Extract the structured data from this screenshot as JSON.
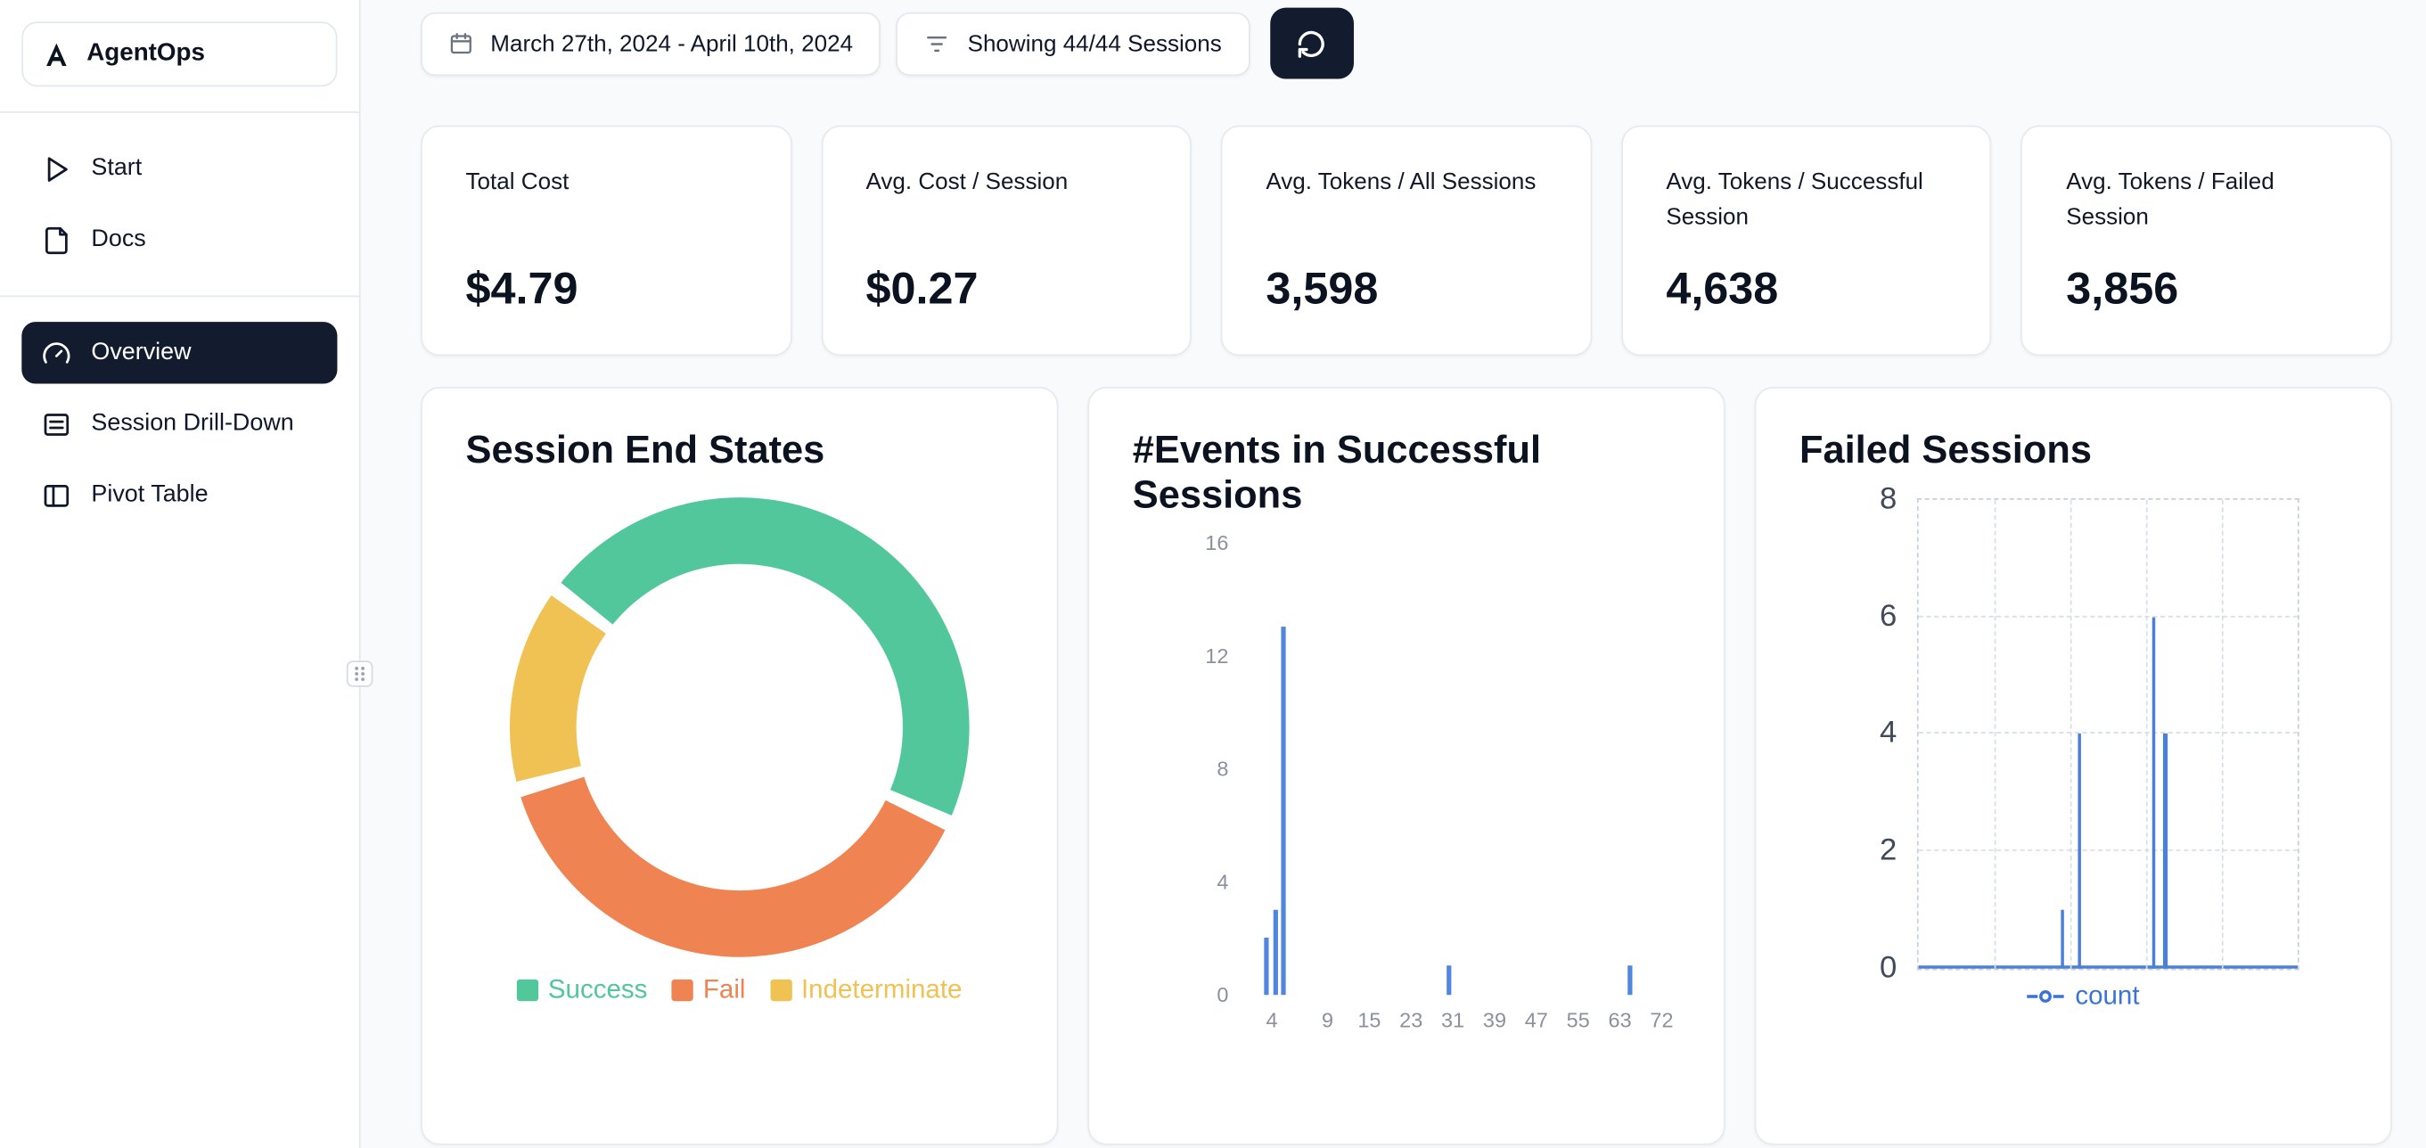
{
  "app": {
    "name": "AgentOps"
  },
  "sidebar": {
    "items": [
      {
        "label": "Start",
        "icon": "play-icon",
        "active": false
      },
      {
        "label": "Docs",
        "icon": "docs-icon",
        "active": false
      },
      {
        "label": "Overview",
        "icon": "gauge-icon",
        "active": true
      },
      {
        "label": "Session Drill-Down",
        "icon": "list-rows-icon",
        "active": false
      },
      {
        "label": "Pivot Table",
        "icon": "panel-columns-icon",
        "active": false
      }
    ]
  },
  "toolbar": {
    "date_range": "March 27th, 2024 - April 10th, 2024",
    "sessions_filter": "Showing 44/44 Sessions"
  },
  "stats": [
    {
      "label": "Total Cost",
      "value": "$4.79"
    },
    {
      "label": "Avg. Cost / Session",
      "value": "$0.27"
    },
    {
      "label": "Avg. Tokens / All Sessions",
      "value": "3,598"
    },
    {
      "label": "Avg. Tokens / Successful Session",
      "value": "4,638"
    },
    {
      "label": "Avg. Tokens / Failed Session",
      "value": "3,856"
    }
  ],
  "colors": {
    "accent_dark": "#131c2f",
    "success": "#52c79b",
    "fail": "#ef8351",
    "indeterminate": "#f0c153",
    "bar_blue": "#4f86e0",
    "line_blue": "#4a80d9"
  },
  "chart_data": [
    {
      "type": "pie",
      "donut": true,
      "title": "Session End States",
      "labels": [
        "Success",
        "Fail",
        "Indeterminate"
      ],
      "values": [
        47,
        39,
        14
      ],
      "unit": "percent",
      "colors": [
        "#52c79b",
        "#ef8351",
        "#f0c153"
      ],
      "legend_position": "bottom"
    },
    {
      "type": "bar",
      "title": "#Events in Successful Sessions",
      "x_ticks": [
        "4",
        "9",
        "15",
        "23",
        "31",
        "39",
        "47",
        "55",
        "63",
        "72"
      ],
      "x_tick_pos": [
        0.05,
        0.17,
        0.26,
        0.35,
        0.44,
        0.53,
        0.62,
        0.71,
        0.8,
        0.89
      ],
      "y_ticks": [
        0,
        4,
        8,
        12,
        16
      ],
      "ylim": [
        0,
        16
      ],
      "bars": [
        {
          "pos": 0.033,
          "value": 2
        },
        {
          "pos": 0.052,
          "value": 3
        },
        {
          "pos": 0.071,
          "value": 13
        },
        {
          "pos": 0.425,
          "value": 1
        },
        {
          "pos": 0.815,
          "value": 1
        }
      ],
      "color": "#4f86e0",
      "grid": false
    },
    {
      "type": "line",
      "title": "Failed Sessions",
      "y_ticks": [
        0,
        2,
        4,
        6,
        8
      ],
      "ylim": [
        0,
        8
      ],
      "grid": "dashed",
      "legend_position": "bottom",
      "series": [
        {
          "name": "count",
          "color": "#4a80d9",
          "spikes": [
            {
              "pos": 0.375,
              "value": 1
            },
            {
              "pos": 0.42,
              "value": 4
            },
            {
              "pos": 0.615,
              "value": 6
            },
            {
              "pos": 0.645,
              "value": 4
            }
          ]
        }
      ]
    }
  ]
}
